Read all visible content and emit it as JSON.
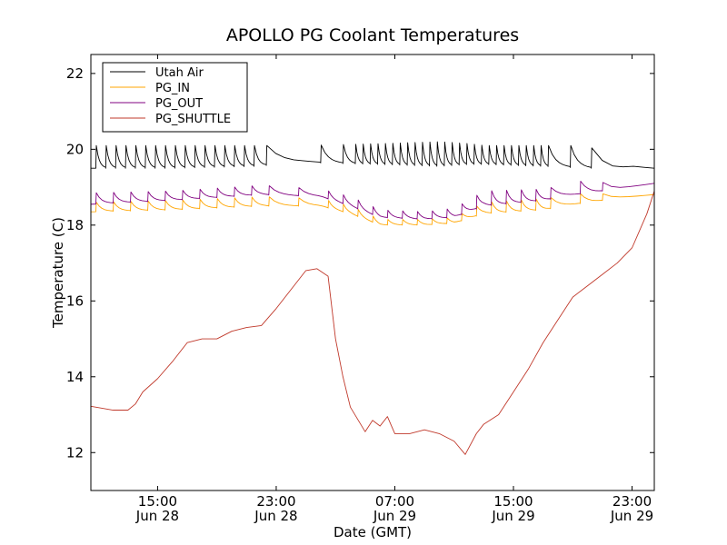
{
  "chart_data": {
    "type": "line",
    "title": "APOLLO PG Coolant Temperatures",
    "xlabel": "Date (GMT)",
    "ylabel": "Temperature (C)",
    "ylim": [
      11,
      22.5
    ],
    "yticks": [
      12,
      14,
      16,
      18,
      20,
      22
    ],
    "xlim": [
      "2014-06-28 10:30",
      "2014-06-30 00:30"
    ],
    "xticks": [
      {
        "t": "2014-06-28 15:00",
        "time": "15:00",
        "date": "Jun 28"
      },
      {
        "t": "2014-06-28 23:00",
        "time": "23:00",
        "date": "Jun 28"
      },
      {
        "t": "2014-06-29 07:00",
        "time": "07:00",
        "date": "Jun 29"
      },
      {
        "t": "2014-06-29 15:00",
        "time": "15:00",
        "date": "Jun 29"
      },
      {
        "t": "2014-06-29 23:00",
        "time": "23:00",
        "date": "Jun 29"
      }
    ],
    "legend_position": "top-left",
    "grid": false,
    "series": [
      {
        "name": "Utah Air",
        "color": "#000000",
        "style": "sawtooth",
        "x": [
          "2014-06-28 10:30",
          "2014-06-28 16:00",
          "2014-06-28 21:30",
          "2014-06-29 01:00",
          "2014-06-29 06:00",
          "2014-06-29 10:00",
          "2014-06-29 12:00",
          "2014-06-29 13:00",
          "2014-06-29 17:00",
          "2014-06-29 20:00",
          "2014-06-29 22:00",
          "2014-06-29 23:00",
          "2014-06-30 00:30"
        ],
        "low": [
          19.5,
          19.5,
          19.55,
          19.65,
          19.6,
          19.55,
          19.6,
          19.6,
          19.55,
          19.5,
          19.5,
          19.55,
          19.5
        ],
        "high": [
          20.1,
          20.1,
          20.1,
          20.1,
          20.15,
          20.2,
          20.15,
          20.1,
          20.1,
          20.1,
          19.6,
          19.6,
          19.5
        ],
        "spikes": [
          "2014-06-28 10:50",
          "2014-06-28 11:30",
          "2014-06-28 12:10",
          "2014-06-28 12:50",
          "2014-06-28 13:30",
          "2014-06-28 14:10",
          "2014-06-28 14:50",
          "2014-06-28 15:30",
          "2014-06-28 16:10",
          "2014-06-28 16:50",
          "2014-06-28 17:30",
          "2014-06-28 18:10",
          "2014-06-28 18:50",
          "2014-06-28 19:30",
          "2014-06-28 20:10",
          "2014-06-28 20:50",
          "2014-06-28 21:30",
          "2014-06-28 22:20",
          "2014-06-29 02:00",
          "2014-06-29 03:30",
          "2014-06-29 04:20",
          "2014-06-29 04:50",
          "2014-06-29 05:20",
          "2014-06-29 05:50",
          "2014-06-29 06:20",
          "2014-06-29 06:50",
          "2014-06-29 07:20",
          "2014-06-29 07:50",
          "2014-06-29 08:20",
          "2014-06-29 08:50",
          "2014-06-29 09:20",
          "2014-06-29 09:50",
          "2014-06-29 10:20",
          "2014-06-29 10:50",
          "2014-06-29 11:20",
          "2014-06-29 11:50",
          "2014-06-29 12:20",
          "2014-06-29 12:50",
          "2014-06-29 13:20",
          "2014-06-29 13:50",
          "2014-06-29 14:20",
          "2014-06-29 14:50",
          "2014-06-29 15:20",
          "2014-06-29 15:50",
          "2014-06-29 16:20",
          "2014-06-29 16:50",
          "2014-06-29 17:20",
          "2014-06-29 18:50",
          "2014-06-29 20:15"
        ]
      },
      {
        "name": "PG_IN",
        "color": "#ffa500",
        "style": "sawtooth",
        "x": [
          "2014-06-28 10:30",
          "2014-06-28 16:00",
          "2014-06-28 22:00",
          "2014-06-29 02:00",
          "2014-06-29 04:00",
          "2014-06-29 06:00",
          "2014-06-29 09:00",
          "2014-06-29 11:00",
          "2014-06-29 13:00",
          "2014-06-29 17:00",
          "2014-06-29 20:00",
          "2014-06-29 22:00",
          "2014-06-30 00:30"
        ],
        "low": [
          18.35,
          18.4,
          18.5,
          18.5,
          18.3,
          18.0,
          18.0,
          18.05,
          18.3,
          18.4,
          18.6,
          18.7,
          18.8
        ],
        "high": [
          18.6,
          18.65,
          18.75,
          18.7,
          18.5,
          18.15,
          18.15,
          18.2,
          18.6,
          18.7,
          18.85,
          18.8,
          18.9
        ],
        "spikes": [
          "2014-06-28 10:50",
          "2014-06-28 12:00",
          "2014-06-28 13:10",
          "2014-06-28 14:20",
          "2014-06-28 15:30",
          "2014-06-28 16:40",
          "2014-06-28 17:50",
          "2014-06-28 19:00",
          "2014-06-28 20:10",
          "2014-06-28 21:20",
          "2014-06-28 22:30",
          "2014-06-29 00:30",
          "2014-06-29 02:30",
          "2014-06-29 03:30",
          "2014-06-29 04:30",
          "2014-06-29 05:30",
          "2014-06-29 06:30",
          "2014-06-29 07:30",
          "2014-06-29 08:30",
          "2014-06-29 09:30",
          "2014-06-29 10:30",
          "2014-06-29 11:30",
          "2014-06-29 12:30",
          "2014-06-29 13:30",
          "2014-06-29 14:30",
          "2014-06-29 15:30",
          "2014-06-29 16:30",
          "2014-06-29 17:30",
          "2014-06-29 19:30",
          "2014-06-29 21:00"
        ]
      },
      {
        "name": "PG_OUT",
        "color": "#800080",
        "style": "sawtooth",
        "x": [
          "2014-06-28 10:30",
          "2014-06-28 16:00",
          "2014-06-28 22:00",
          "2014-06-29 02:00",
          "2014-06-29 04:00",
          "2014-06-29 06:00",
          "2014-06-29 09:00",
          "2014-06-29 11:00",
          "2014-06-29 13:00",
          "2014-06-29 17:00",
          "2014-06-29 20:00",
          "2014-06-29 22:00",
          "2014-06-30 00:30"
        ],
        "low": [
          18.55,
          18.65,
          18.8,
          18.75,
          18.5,
          18.2,
          18.15,
          18.2,
          18.5,
          18.65,
          18.85,
          18.95,
          19.1
        ],
        "high": [
          18.85,
          18.9,
          19.05,
          18.95,
          18.75,
          18.4,
          18.35,
          18.45,
          18.9,
          18.95,
          19.2,
          19.05,
          19.15
        ],
        "spikes": [
          "2014-06-28 10:50",
          "2014-06-28 12:00",
          "2014-06-28 13:10",
          "2014-06-28 14:20",
          "2014-06-28 15:30",
          "2014-06-28 16:40",
          "2014-06-28 17:50",
          "2014-06-28 19:00",
          "2014-06-28 20:10",
          "2014-06-28 21:20",
          "2014-06-28 22:30",
          "2014-06-29 00:30",
          "2014-06-29 02:30",
          "2014-06-29 03:30",
          "2014-06-29 04:30",
          "2014-06-29 05:30",
          "2014-06-29 06:30",
          "2014-06-29 07:30",
          "2014-06-29 08:30",
          "2014-06-29 09:30",
          "2014-06-29 10:30",
          "2014-06-29 11:30",
          "2014-06-29 12:30",
          "2014-06-29 13:30",
          "2014-06-29 14:30",
          "2014-06-29 15:30",
          "2014-06-29 16:30",
          "2014-06-29 17:30",
          "2014-06-29 19:30",
          "2014-06-29 21:00"
        ]
      },
      {
        "name": "PG_SHUTTLE",
        "color": "#c0392b",
        "style": "line",
        "x": [
          "2014-06-28 10:30",
          "2014-06-28 12:00",
          "2014-06-28 13:00",
          "2014-06-28 13:30",
          "2014-06-28 14:00",
          "2014-06-28 15:00",
          "2014-06-28 16:00",
          "2014-06-28 17:00",
          "2014-06-28 18:00",
          "2014-06-28 19:00",
          "2014-06-28 20:00",
          "2014-06-28 21:00",
          "2014-06-28 22:00",
          "2014-06-28 23:00",
          "2014-06-29 00:00",
          "2014-06-29 01:00",
          "2014-06-29 01:45",
          "2014-06-29 02:30",
          "2014-06-29 03:00",
          "2014-06-29 03:30",
          "2014-06-29 04:00",
          "2014-06-29 05:00",
          "2014-06-29 05:30",
          "2014-06-29 06:00",
          "2014-06-29 06:30",
          "2014-06-29 07:00",
          "2014-06-29 08:00",
          "2014-06-29 09:00",
          "2014-06-29 10:00",
          "2014-06-29 11:00",
          "2014-06-29 11:45",
          "2014-06-29 12:30",
          "2014-06-29 13:00",
          "2014-06-29 14:00",
          "2014-06-29 15:00",
          "2014-06-29 16:00",
          "2014-06-29 17:00",
          "2014-06-29 18:00",
          "2014-06-29 19:00",
          "2014-06-29 20:00",
          "2014-06-29 21:00",
          "2014-06-29 22:00",
          "2014-06-29 23:00",
          "2014-06-30 00:00",
          "2014-06-30 00:30"
        ],
        "y": [
          13.22,
          13.12,
          13.12,
          13.28,
          13.6,
          13.95,
          14.4,
          14.9,
          15.0,
          15.0,
          15.2,
          15.3,
          15.35,
          15.8,
          16.3,
          16.8,
          16.85,
          16.65,
          15.0,
          14.0,
          13.2,
          12.55,
          12.85,
          12.7,
          12.95,
          12.5,
          12.5,
          12.6,
          12.5,
          12.3,
          11.95,
          12.5,
          12.75,
          13.0,
          13.6,
          14.2,
          14.9,
          15.5,
          16.1,
          16.4,
          16.7,
          17.0,
          17.4,
          18.3,
          18.9
        ]
      }
    ]
  }
}
